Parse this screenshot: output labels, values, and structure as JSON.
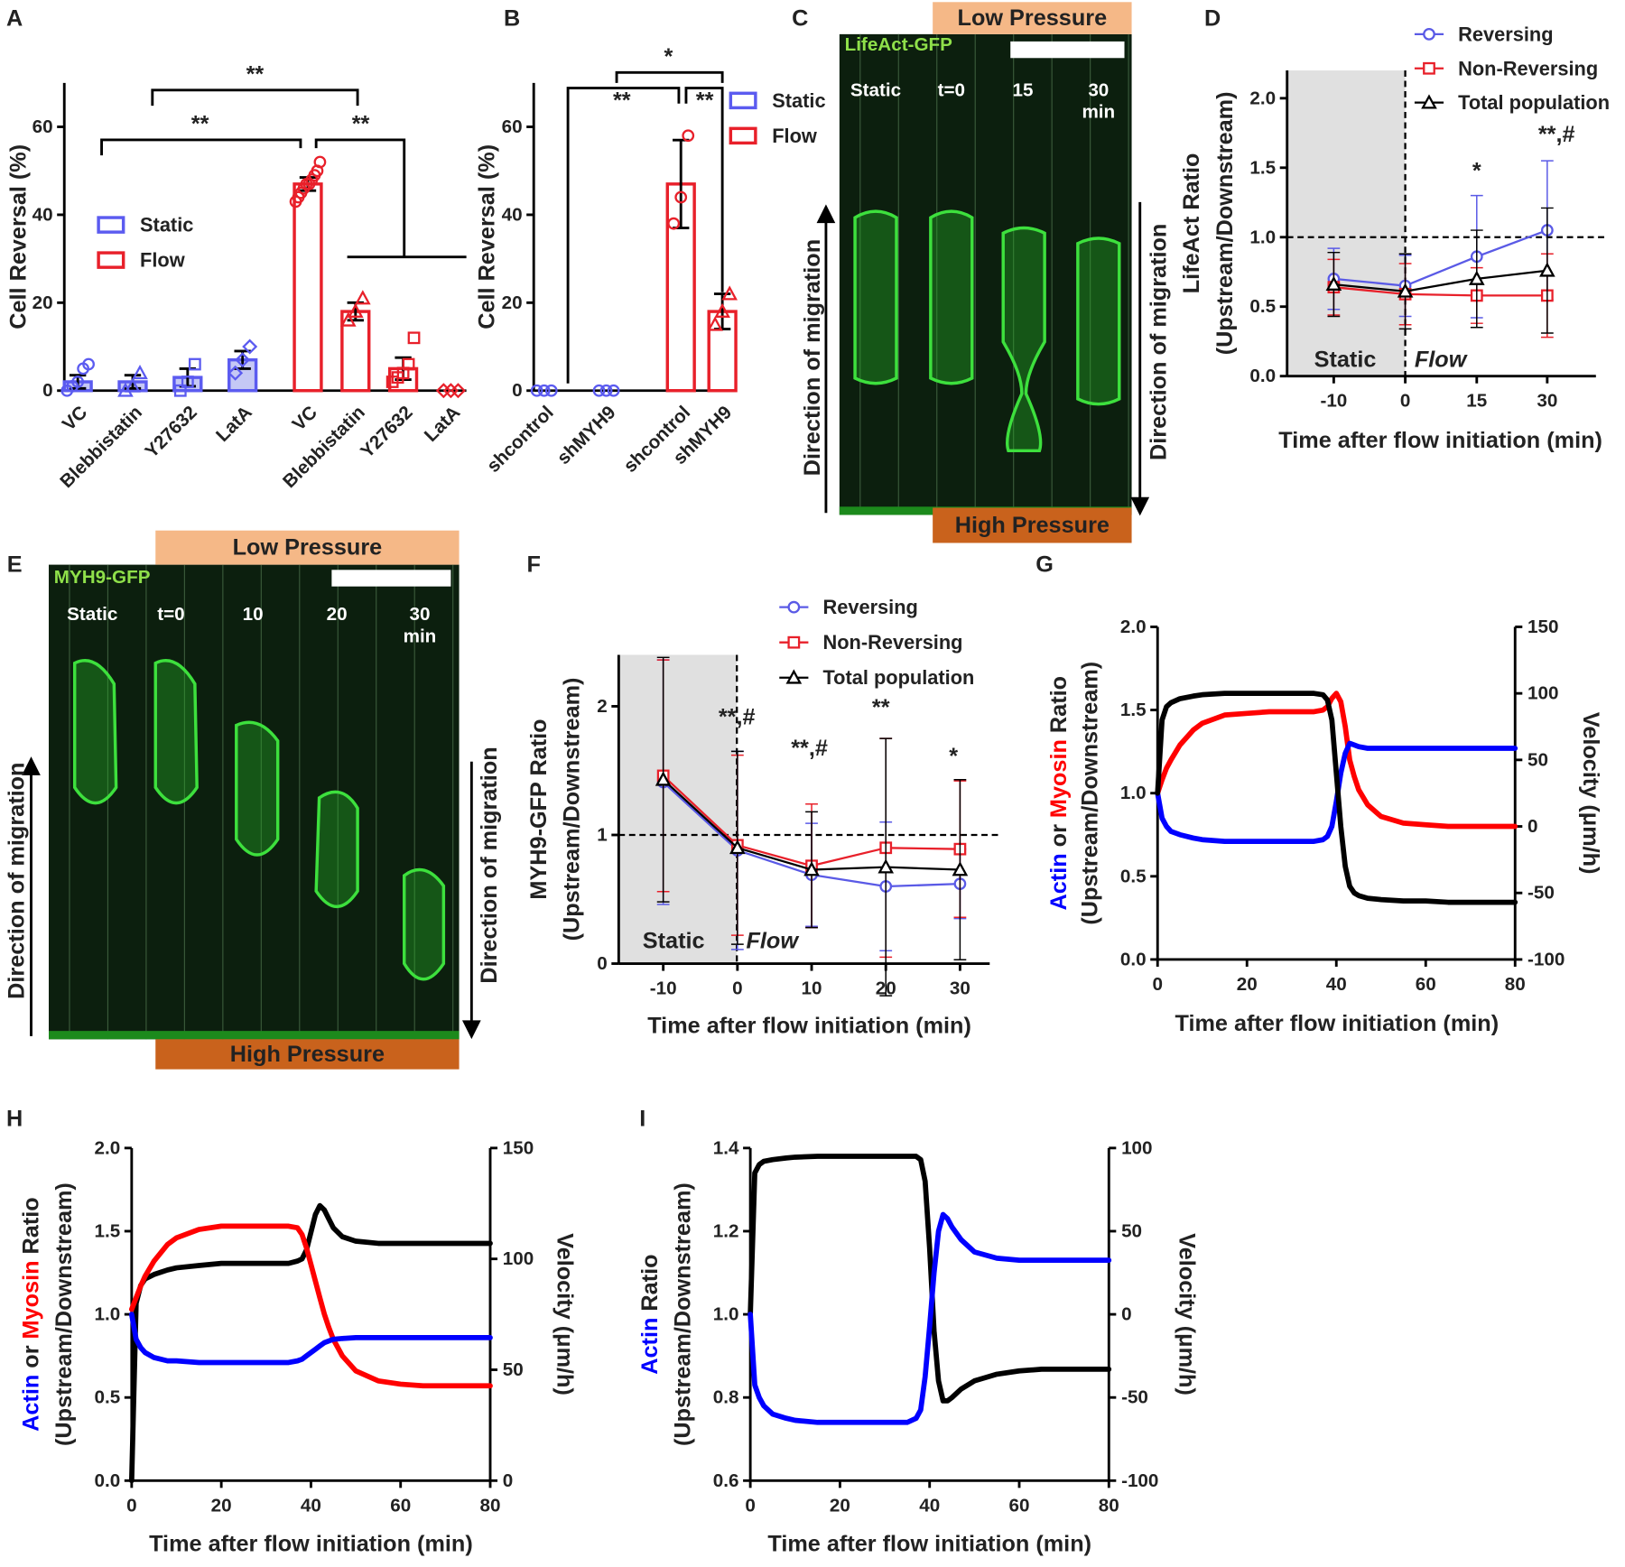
{
  "chart_data": [
    {
      "type": "bar",
      "panel": "A",
      "ylabel": "Cell Reversal (%)",
      "categories": [
        "VC",
        "Blebbistatin",
        "Y27632",
        "LatA",
        "VC",
        "Blebbistatin",
        "Y27632",
        "LatA"
      ],
      "series": [
        {
          "name": "Static",
          "color": "#5b5bf0",
          "fill": "#c5c8f5",
          "values": [
            2,
            2,
            3,
            7,
            null,
            null,
            null,
            null
          ],
          "errors": [
            1.5,
            1.5,
            2,
            2,
            null,
            null,
            null,
            null
          ],
          "points": [
            [
              0,
              1,
              2,
              5,
              6
            ],
            [
              0,
              1,
              4
            ],
            [
              0,
              2,
              6
            ],
            [
              4,
              7,
              10
            ],
            null,
            null,
            null,
            null
          ]
        },
        {
          "name": "Flow",
          "color": "#e8202a",
          "fill": "#ffffff",
          "values": [
            null,
            null,
            null,
            null,
            47,
            18,
            5,
            0
          ],
          "errors": [
            null,
            null,
            null,
            null,
            1.5,
            2,
            2.5,
            0
          ],
          "points": [
            null,
            null,
            null,
            null,
            [
              43,
              44,
              45,
              46,
              47,
              47,
              48,
              49,
              50,
              52
            ],
            [
              16,
              18,
              21
            ],
            [
              2,
              3,
              4,
              6,
              12
            ],
            [
              0,
              0,
              0
            ]
          ]
        }
      ],
      "ylim": [
        0,
        70
      ],
      "yticks": [
        0,
        20,
        40,
        60
      ],
      "annotations": [
        "**",
        "**",
        "**"
      ]
    },
    {
      "type": "bar",
      "panel": "B",
      "ylabel": "Cell Reversal (%)",
      "categories": [
        "shcontrol",
        "shMYH9",
        "shcontrol",
        "shMYH9"
      ],
      "series": [
        {
          "name": "Static",
          "color": "#5b5bf0",
          "fill": "#c5c8f5",
          "values": [
            0,
            0,
            null,
            null
          ],
          "errors": [
            0,
            0,
            null,
            null
          ],
          "points": [
            [
              0,
              0,
              0
            ],
            [
              0,
              0,
              0
            ],
            null,
            null
          ]
        },
        {
          "name": "Flow",
          "color": "#e8202a",
          "fill": "#ffffff",
          "values": [
            null,
            null,
            47,
            18
          ],
          "errors": [
            null,
            null,
            10,
            4
          ],
          "points": [
            null,
            null,
            [
              38,
              44,
              58
            ],
            [
              15,
              18,
              22
            ]
          ]
        }
      ],
      "ylim": [
        0,
        70
      ],
      "yticks": [
        0,
        20,
        40,
        60
      ],
      "annotations": [
        "*",
        "**",
        "**"
      ]
    },
    {
      "type": "line",
      "panel": "D",
      "ylabel": [
        "LifeAct Ratio",
        "(Upstream/Downstream)"
      ],
      "xlabel": "Time after flow initiation (min)",
      "categories": [
        "-10",
        "0",
        "15",
        "30"
      ],
      "series": [
        {
          "name": "Reversing",
          "color": "#5a5ae6",
          "marker": "circle",
          "values": [
            0.7,
            0.65,
            0.86,
            1.05
          ],
          "errors": [
            0.22,
            0.22,
            0.44,
            0.5
          ]
        },
        {
          "name": "Non-Reversing",
          "color": "#e8202a",
          "marker": "square",
          "values": [
            0.64,
            0.59,
            0.58,
            0.58
          ],
          "errors": [
            0.2,
            0.22,
            0.2,
            0.3
          ]
        },
        {
          "name": "Total population",
          "color": "#000000",
          "marker": "triangle",
          "values": [
            0.66,
            0.61,
            0.7,
            0.76
          ],
          "errors": [
            0.23,
            0.27,
            0.35,
            0.45
          ]
        }
      ],
      "ylim": [
        0,
        2.2
      ],
      "yticks": [
        {
          "value": 0,
          "label": "0.0"
        },
        {
          "value": 0.5,
          "label": "0.5"
        },
        {
          "value": 1,
          "label": "1.0"
        },
        {
          "value": 1.5,
          "label": "1.5"
        },
        {
          "value": 2,
          "label": "2.0"
        }
      ],
      "reference_line": 1,
      "annotations": [
        "*",
        "**,#",
        "Static",
        "Flow"
      ]
    },
    {
      "type": "line",
      "panel": "F",
      "ylabel": [
        "MYH9-GFP Ratio",
        "(Upstream/Downstream)"
      ],
      "xlabel": "Time after flow initiation (min)",
      "x": [
        -10,
        0,
        10,
        20,
        30
      ],
      "xlim": [
        -16,
        34
      ],
      "xticks": [
        -10,
        0,
        10,
        20,
        30
      ],
      "series": [
        {
          "name": "Reversing",
          "color": "#5a5ae6",
          "marker": "circle",
          "values": [
            1.41,
            0.88,
            0.69,
            0.6,
            0.62
          ],
          "errors": [
            0.95,
            0.77,
            0.4,
            0.5,
            0.27
          ]
        },
        {
          "name": "Non-Reversing",
          "color": "#e8202a",
          "marker": "square",
          "values": [
            1.46,
            0.92,
            0.76,
            0.9,
            0.89
          ],
          "errors": [
            0.9,
            0.7,
            0.48,
            0.85,
            0.53
          ]
        },
        {
          "name": "Total population",
          "color": "#000000",
          "marker": "triangle",
          "values": [
            1.43,
            0.9,
            0.73,
            0.75,
            0.73
          ],
          "errors": [
            0.95,
            0.75,
            0.45,
            1.0,
            0.7
          ]
        }
      ],
      "ylim": [
        0,
        2.4
      ],
      "yticks": [
        0,
        1,
        2
      ],
      "reference_line": 1,
      "annotations": [
        "**,#",
        "**,#",
        "**",
        "*",
        "Static",
        "Flow"
      ]
    },
    {
      "type": "line",
      "panel": "G",
      "ylabel": [
        [
          "Actin",
          "or",
          "Myosin",
          "Ratio"
        ],
        "(Upstream/Downstream)"
      ],
      "ylabel_part_colors": [
        "#0000ff",
        "#222222",
        "#ff0000",
        "#222222"
      ],
      "y2label": "Velocity (μm/h)",
      "xlabel": "Time after flow initiation (min)",
      "x": [
        0,
        1,
        2,
        3,
        5,
        8,
        10,
        15,
        20,
        25,
        30,
        35,
        37,
        38,
        39,
        40,
        41,
        42,
        43,
        44,
        45,
        47,
        50,
        55,
        60,
        65,
        70,
        75,
        80
      ],
      "xlim": [
        0,
        80
      ],
      "xticks": [
        0,
        20,
        40,
        60,
        80
      ],
      "series": [
        {
          "color": "#ff0000",
          "values": [
            1.0,
            1.08,
            1.15,
            1.2,
            1.29,
            1.38,
            1.42,
            1.47,
            1.48,
            1.49,
            1.49,
            1.49,
            1.5,
            1.52,
            1.57,
            1.6,
            1.55,
            1.4,
            1.2,
            1.1,
            1.02,
            0.93,
            0.86,
            0.82,
            0.81,
            0.8,
            0.8,
            0.8,
            0.8
          ]
        },
        {
          "color": "#0000ff",
          "values": [
            1.0,
            0.85,
            0.8,
            0.77,
            0.75,
            0.73,
            0.72,
            0.71,
            0.71,
            0.71,
            0.71,
            0.71,
            0.72,
            0.74,
            0.8,
            0.95,
            1.12,
            1.24,
            1.3,
            1.29,
            1.28,
            1.27,
            1.27,
            1.27,
            1.27,
            1.27,
            1.27,
            1.27,
            1.27
          ]
        },
        {
          "color": "#000000",
          "axis": "y2",
          "values": [
            25,
            80,
            90,
            93,
            96,
            98,
            99,
            100,
            100,
            100,
            100,
            100,
            99,
            95,
            80,
            40,
            0,
            -30,
            -45,
            -50,
            -52,
            -54,
            -55,
            -56,
            -56,
            -57,
            -57,
            -57,
            -57
          ]
        }
      ],
      "ylim": [
        0,
        2
      ],
      "yticks": [
        {
          "value": 0,
          "label": "0.0"
        },
        {
          "value": 0.5,
          "label": "0.5"
        },
        {
          "value": 1,
          "label": "1.0"
        },
        {
          "value": 1.5,
          "label": "1.5"
        },
        {
          "value": 2,
          "label": "2.0"
        }
      ],
      "y2lim": [
        -100,
        150
      ],
      "y2ticks": [
        -100,
        -50,
        0,
        50,
        100,
        150
      ]
    },
    {
      "type": "line",
      "panel": "H",
      "ylabel": [
        [
          "Actin",
          "or",
          "Myosin",
          "Ratio"
        ],
        "(Upstream/Downstream)"
      ],
      "ylabel_part_colors": [
        "#0000ff",
        "#222222",
        "#ff0000",
        "#222222"
      ],
      "y2label": "Velocity (μm/h)",
      "xlabel": "Time after flow initiation (min)",
      "x": [
        0,
        1,
        2,
        3,
        5,
        8,
        10,
        15,
        20,
        25,
        30,
        35,
        37,
        38,
        39,
        40,
        41,
        42,
        43,
        44,
        45,
        47,
        50,
        55,
        60,
        65,
        70,
        75,
        80
      ],
      "xlim": [
        0,
        80
      ],
      "xticks": [
        0,
        20,
        40,
        60,
        80
      ],
      "series": [
        {
          "color": "#000000",
          "axis": "y2",
          "values": [
            0,
            80,
            88,
            91,
            93,
            95,
            96,
            97,
            98,
            98,
            98,
            98,
            99,
            100,
            104,
            112,
            120,
            124,
            122,
            118,
            114,
            110,
            108,
            107,
            107,
            107,
            107,
            107,
            107
          ]
        },
        {
          "color": "#ff0000",
          "values": [
            1.03,
            1.1,
            1.17,
            1.23,
            1.32,
            1.42,
            1.46,
            1.51,
            1.53,
            1.53,
            1.53,
            1.53,
            1.52,
            1.48,
            1.4,
            1.3,
            1.2,
            1.1,
            1.0,
            0.92,
            0.85,
            0.75,
            0.66,
            0.6,
            0.58,
            0.57,
            0.57,
            0.57,
            0.57
          ]
        },
        {
          "color": "#0000ff",
          "values": [
            1.0,
            0.85,
            0.8,
            0.77,
            0.74,
            0.72,
            0.72,
            0.71,
            0.71,
            0.71,
            0.71,
            0.71,
            0.72,
            0.73,
            0.75,
            0.77,
            0.79,
            0.81,
            0.83,
            0.84,
            0.85,
            0.855,
            0.86,
            0.86,
            0.86,
            0.86,
            0.86,
            0.86,
            0.86
          ]
        }
      ],
      "ylim": [
        0,
        2
      ],
      "yticks": [
        {
          "value": 0,
          "label": "0.0"
        },
        {
          "value": 0.5,
          "label": "0.5"
        },
        {
          "value": 1,
          "label": "1.0"
        },
        {
          "value": 1.5,
          "label": "1.5"
        },
        {
          "value": 2,
          "label": "2.0"
        }
      ],
      "y2lim": [
        0,
        150
      ],
      "y2ticks": [
        0,
        50,
        100,
        150
      ]
    },
    {
      "type": "line",
      "panel": "I",
      "ylabel": [
        [
          "Actin",
          "Ratio"
        ],
        "(Upstream/Downstream)"
      ],
      "ylabel_part_colors": [
        "#0000ff",
        "#222222"
      ],
      "y2label": "Velocity (μm/h)",
      "xlabel": "Time after flow initiation (min)",
      "x": [
        0,
        1,
        2,
        3,
        5,
        8,
        10,
        15,
        20,
        25,
        30,
        35,
        37,
        38,
        39,
        40,
        41,
        42,
        43,
        44,
        45,
        47,
        50,
        55,
        60,
        65,
        70,
        75,
        80
      ],
      "xlim": [
        0,
        80
      ],
      "xticks": [
        0,
        20,
        40,
        60,
        80
      ],
      "series": [
        {
          "color": "#000000",
          "axis": "y2",
          "values": [
            0,
            85,
            90,
            92,
            93,
            94,
            94.5,
            95,
            95,
            95,
            95,
            95,
            95,
            93,
            80,
            40,
            -10,
            -40,
            -52,
            -52,
            -50,
            -45,
            -40,
            -36,
            -34,
            -33,
            -33,
            -33,
            -33
          ]
        },
        {
          "color": "#0000ff",
          "values": [
            1.0,
            0.83,
            0.8,
            0.78,
            0.76,
            0.75,
            0.745,
            0.74,
            0.74,
            0.74,
            0.74,
            0.74,
            0.75,
            0.77,
            0.85,
            0.97,
            1.1,
            1.2,
            1.24,
            1.23,
            1.21,
            1.18,
            1.15,
            1.135,
            1.13,
            1.13,
            1.13,
            1.13,
            1.13
          ]
        }
      ],
      "ylim": [
        0.6,
        1.4
      ],
      "yticks": [
        0.6,
        0.8,
        {
          "value": 1,
          "label": "1.0"
        },
        1.2,
        1.4
      ],
      "y2lim": [
        -100,
        100
      ],
      "y2ticks": [
        -100,
        -50,
        0,
        50,
        100
      ]
    }
  ],
  "micrographs": [
    {
      "panel": "C",
      "stain": "LifeAct-GFP",
      "top_label": "Low Pressure",
      "bottom_label": "High Pressure",
      "frames": [
        "Static",
        "t=0",
        "15",
        "30"
      ],
      "frame_unit": "min",
      "left_arrow": "Direction of migration",
      "right_arrow": "Direction of migration"
    },
    {
      "panel": "E",
      "stain": "MYH9-GFP",
      "top_label": "Low Pressure",
      "bottom_label": "High Pressure",
      "frames": [
        "Static",
        "t=0",
        "10",
        "20",
        "30"
      ],
      "frame_unit": "min",
      "left_arrow": "Direction of migration",
      "right_arrow": "Direction of migration"
    }
  ]
}
